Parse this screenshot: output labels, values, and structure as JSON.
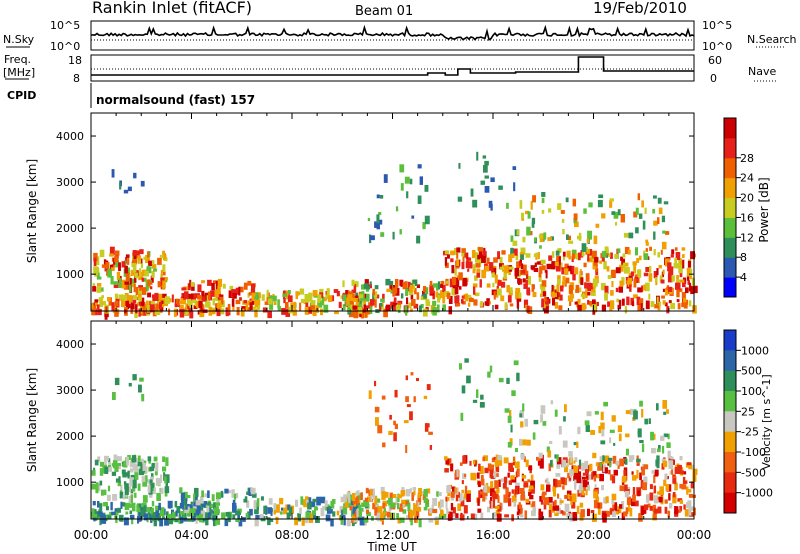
{
  "header": {
    "station": "Rankin Inlet (fitACF)",
    "beam": "Beam 01",
    "date": "19/Feb/2010"
  },
  "noise_panel": {
    "left_label": "N.Sky",
    "right_label": "N.Search",
    "tick_top": "10^5",
    "tick_bottom": "10^0"
  },
  "freq_panel": {
    "left_label_1": "Freq.",
    "left_label_2": "[MHz]",
    "left_label_3": "CPID",
    "right_label": "Nave",
    "left_ticks": [
      "18",
      "8"
    ],
    "right_ticks": [
      "60",
      "0"
    ]
  },
  "cpid_text": "normalsound (fast) 157",
  "chart_data": [
    {
      "type": "heatmap",
      "name": "power",
      "ylabel": "Slant Range [km]",
      "ylim": [
        200,
        4500
      ],
      "yticks": [
        "1000",
        "2000",
        "3000",
        "4000"
      ],
      "xlim_hours": [
        0,
        24
      ],
      "colorbar": {
        "label": "Power [dB]",
        "ticks": [
          "4",
          "8",
          "12",
          "16",
          "20",
          "24",
          "28"
        ],
        "colors": [
          "#0000ff",
          "#2b58b0",
          "#2f8f5a",
          "#5cbf3a",
          "#c8cc20",
          "#f0a000",
          "#f06000",
          "#e8201a",
          "#cc0000"
        ]
      }
    },
    {
      "type": "heatmap",
      "name": "velocity",
      "ylabel": "Slant Range [km]",
      "ylim": [
        200,
        4500
      ],
      "yticks": [
        "1000",
        "2000",
        "3000",
        "4000"
      ],
      "xlim_hours": [
        0,
        24
      ],
      "xlabel": "Time UT",
      "xticks": [
        "00:00",
        "04:00",
        "08:00",
        "12:00",
        "16:00",
        "20:00",
        "00:00"
      ],
      "colorbar": {
        "label": "Velocity [m s^-1]",
        "ticks": [
          "1000",
          "500",
          "100",
          "25",
          "-25",
          "-100",
          "-500",
          "-1000"
        ],
        "colors": [
          "#1a3cc8",
          "#2c66a8",
          "#2f8f5a",
          "#58c040",
          "#c8c8c0",
          "#f0a000",
          "#f06010",
          "#e82a10",
          "#d40000"
        ]
      }
    }
  ]
}
